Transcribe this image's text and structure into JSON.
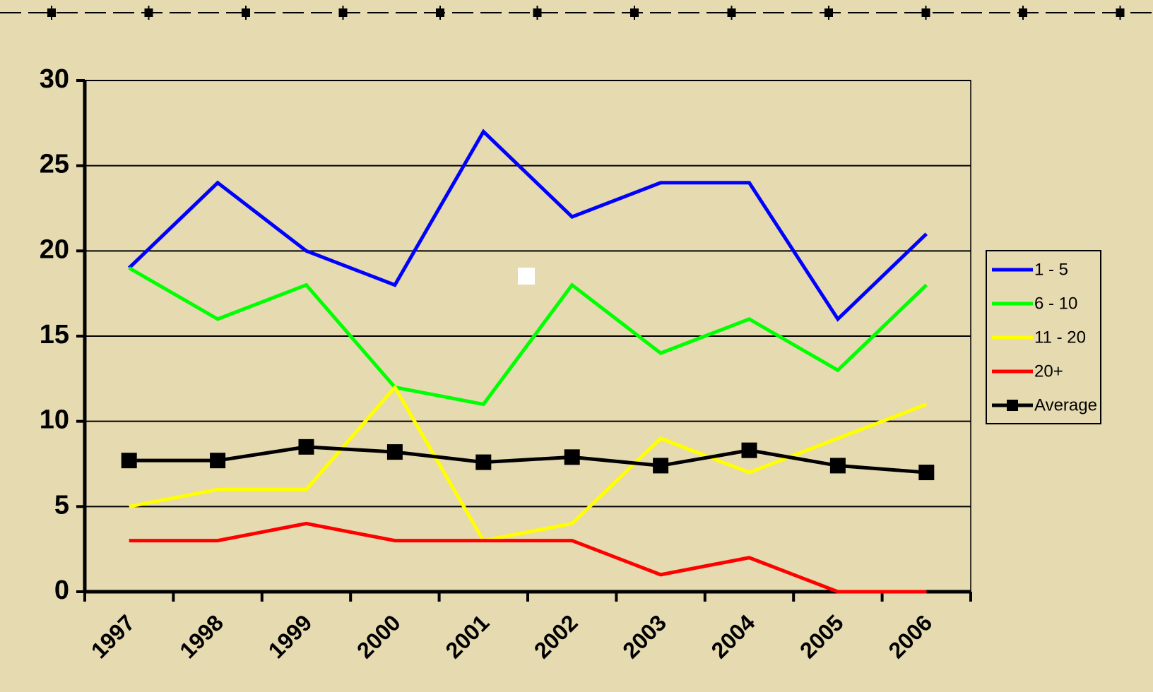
{
  "chart_data": {
    "type": "line",
    "categories": [
      "1997",
      "1998",
      "1999",
      "2000",
      "2001",
      "2002",
      "2003",
      "2004",
      "2005",
      "2006"
    ],
    "series": [
      {
        "name": "1 - 5",
        "color": "#0000ff",
        "values": [
          19,
          24,
          20,
          18,
          27,
          22,
          24,
          24,
          16,
          21
        ]
      },
      {
        "name": "6 - 10",
        "color": "#00ff00",
        "values": [
          19,
          16,
          18,
          12,
          11,
          18,
          14,
          16,
          13,
          18
        ]
      },
      {
        "name": "11 - 20",
        "color": "#ffff00",
        "values": [
          5,
          6,
          6,
          12,
          3,
          4,
          9,
          7,
          9,
          11
        ]
      },
      {
        "name": "20+",
        "color": "#ff0000",
        "values": [
          3,
          3,
          4,
          3,
          3,
          3,
          1,
          2,
          0,
          0
        ]
      },
      {
        "name": "Average",
        "color": "#000000",
        "marker": "square",
        "values": [
          7.7,
          7.7,
          8.5,
          8.2,
          7.6,
          7.9,
          7.4,
          8.3,
          7.4,
          7.0
        ]
      }
    ],
    "ylim": [
      0,
      30
    ],
    "yticks": [
      0,
      5,
      10,
      15,
      20,
      25,
      30
    ],
    "grid": true,
    "legend": "right"
  }
}
